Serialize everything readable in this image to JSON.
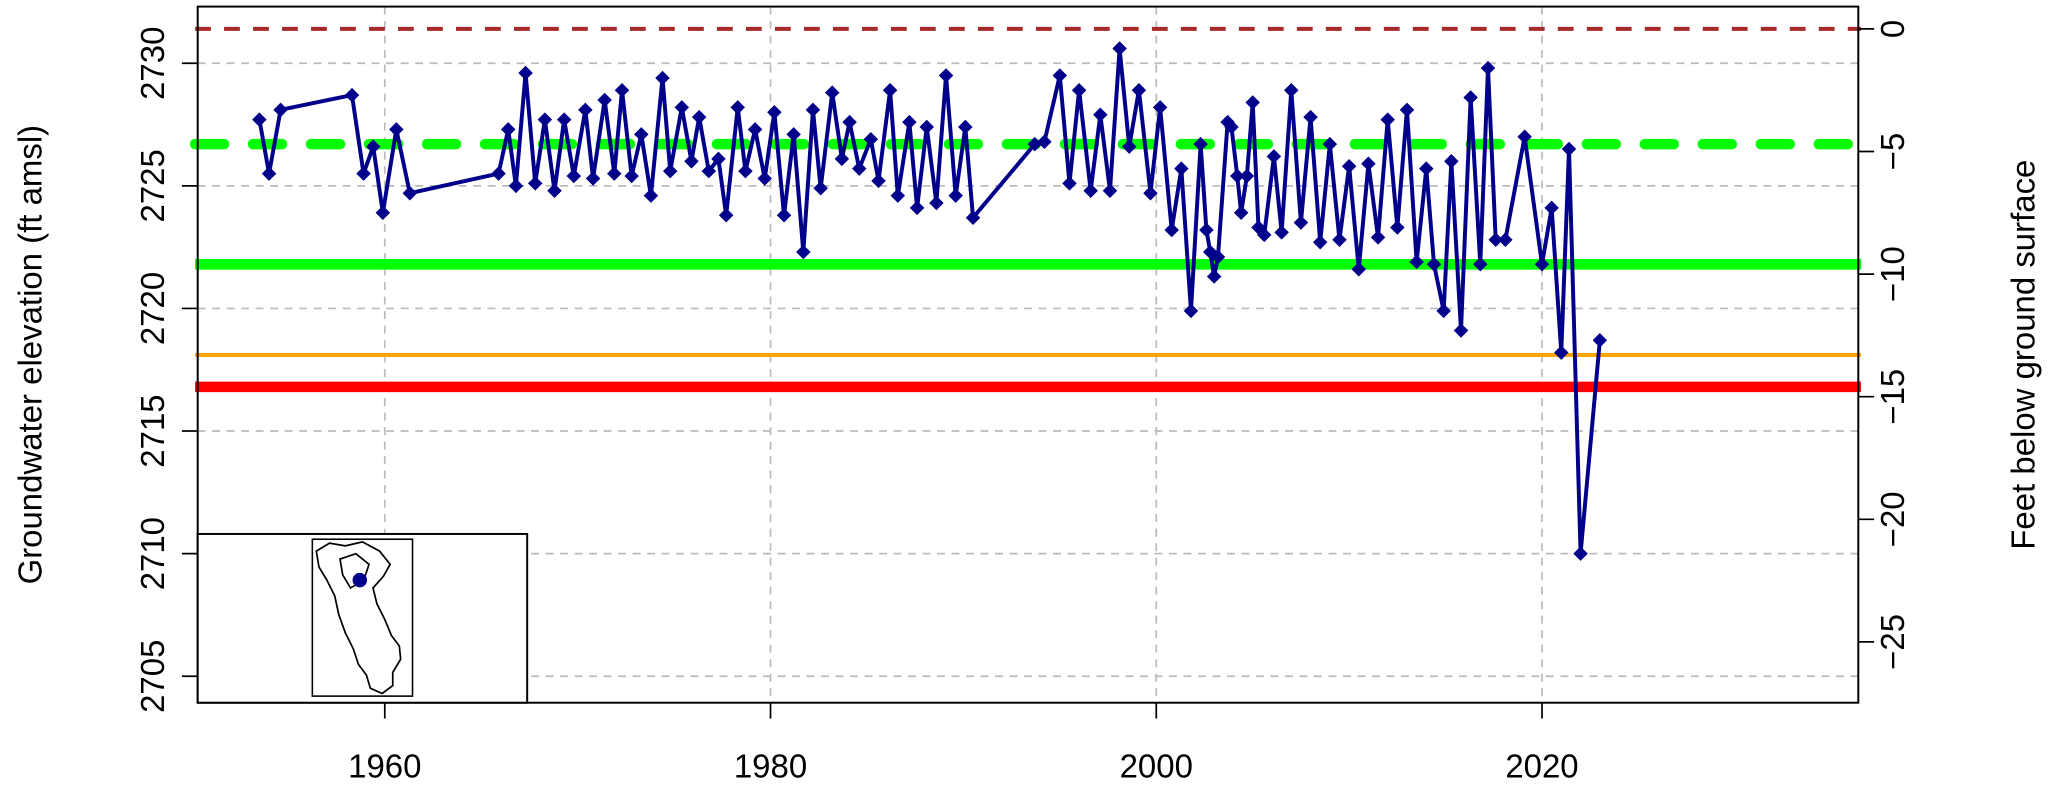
{
  "chart_data": {
    "type": "line",
    "y_label": "Groundwater elevation (ft amsl)",
    "y2_label": "Feet below ground surface",
    "xlim": [
      1950.3,
      2036.4
    ],
    "ylim": [
      2703.92,
      2732.31
    ],
    "y2lim": [
      -27.48,
      0.91
    ],
    "xticks": [
      1960,
      1980,
      2000,
      2020
    ],
    "yticks": [
      2705,
      2710,
      2715,
      2720,
      2725,
      2730
    ],
    "y2ticks": [
      {
        "value": 0,
        "label": "0"
      },
      {
        "value": -5,
        "label": "−5"
      },
      {
        "value": -10,
        "label": "−10"
      },
      {
        "value": -15,
        "label": "−15"
      },
      {
        "value": -20,
        "label": "−20"
      },
      {
        "value": -25,
        "label": "−25"
      }
    ],
    "grid": true,
    "hlines": [
      {
        "value": 0,
        "axis": "y2",
        "color": "#a52a2a",
        "style": "dashed",
        "width": 3
      },
      {
        "value": 2726.7,
        "axis": "y",
        "color": "#00ff00",
        "style": "longdash",
        "width": 8
      },
      {
        "value": 2721.8,
        "axis": "y",
        "color": "#00ff00",
        "style": "solid",
        "width": 8
      },
      {
        "value": 2718.1,
        "axis": "y",
        "color": "#ffa500",
        "style": "solid",
        "width": 3
      },
      {
        "value": 2716.8,
        "axis": "y",
        "color": "#ff0000",
        "style": "solid",
        "width": 8
      }
    ],
    "series": [
      {
        "color": "#00008b",
        "x": [
          1953.5,
          1954.0,
          1954.6,
          1958.3,
          1958.9,
          1959.4,
          1959.9,
          1960.6,
          1961.3,
          1965.9,
          1966.4,
          1966.8,
          1967.3,
          1967.8,
          1968.3,
          1968.8,
          1969.3,
          1969.8,
          1970.4,
          1970.8,
          1971.4,
          1971.9,
          1972.3,
          1972.8,
          1973.3,
          1973.8,
          1974.4,
          1974.8,
          1975.4,
          1975.9,
          1976.3,
          1976.8,
          1977.3,
          1977.7,
          1978.3,
          1978.7,
          1979.2,
          1979.7,
          1980.2,
          1980.7,
          1981.2,
          1981.7,
          1982.2,
          1982.6,
          1983.2,
          1983.7,
          1984.1,
          1984.6,
          1985.2,
          1985.6,
          1986.2,
          1986.6,
          1987.2,
          1987.6,
          1988.1,
          1988.6,
          1989.1,
          1989.6,
          1990.1,
          1990.5,
          1993.7,
          1994.2,
          1995.0,
          1995.5,
          1996.0,
          1996.6,
          1997.1,
          1997.6,
          1998.1,
          1998.6,
          1999.1,
          1999.7,
          2000.2,
          2000.8,
          2001.3,
          2001.8,
          2002.3,
          2002.6,
          2002.8,
          2003.0,
          2003.2,
          2003.7,
          2003.9,
          2004.2,
          2004.4,
          2004.7,
          2005.0,
          2005.3,
          2005.6,
          2006.1,
          2006.5,
          2007.0,
          2007.5,
          2008.0,
          2008.5,
          2009.0,
          2009.5,
          2010.0,
          2010.5,
          2011.0,
          2011.5,
          2012.0,
          2012.5,
          2013.0,
          2013.5,
          2014.0,
          2014.4,
          2014.9,
          2015.3,
          2015.8,
          2016.3,
          2016.8,
          2017.2,
          2017.6,
          2018.1,
          2019.1,
          2020.0,
          2020.5,
          2021.0,
          2021.4,
          2022.0,
          2023.0
        ],
        "values": [
          2727.7,
          2725.5,
          2728.1,
          2728.7,
          2725.5,
          2726.6,
          2723.9,
          2727.3,
          2724.7,
          2725.5,
          2727.3,
          2725.0,
          2729.6,
          2725.1,
          2727.7,
          2724.8,
          2727.7,
          2725.4,
          2728.1,
          2725.3,
          2728.5,
          2725.5,
          2728.9,
          2725.4,
          2727.1,
          2724.6,
          2729.4,
          2725.6,
          2728.2,
          2726.0,
          2727.8,
          2725.6,
          2726.1,
          2723.8,
          2728.2,
          2725.6,
          2727.3,
          2725.3,
          2728.0,
          2723.8,
          2727.1,
          2722.3,
          2728.1,
          2724.9,
          2728.8,
          2726.1,
          2727.6,
          2725.7,
          2726.9,
          2725.2,
          2728.9,
          2724.6,
          2727.6,
          2724.1,
          2727.4,
          2724.3,
          2729.5,
          2724.6,
          2727.4,
          2723.7,
          2726.7,
          2726.8,
          2729.5,
          2725.1,
          2728.9,
          2724.8,
          2727.9,
          2724.8,
          2730.6,
          2726.6,
          2728.9,
          2724.7,
          2728.2,
          2723.2,
          2725.7,
          2719.9,
          2726.7,
          2723.2,
          2722.3,
          2721.3,
          2722.1,
          2727.6,
          2727.4,
          2725.4,
          2723.9,
          2725.4,
          2728.4,
          2723.3,
          2723.0,
          2726.2,
          2723.1,
          2728.9,
          2723.5,
          2727.8,
          2722.7,
          2726.7,
          2722.8,
          2725.8,
          2721.6,
          2725.9,
          2722.9,
          2727.7,
          2723.3,
          2728.1,
          2721.9,
          2725.7,
          2721.8,
          2719.9,
          2726.0,
          2719.1,
          2728.6,
          2721.8,
          2729.8,
          2722.8,
          2722.8,
          2727.0,
          2721.8,
          2724.1,
          2718.2,
          2726.5,
          2710.0,
          2718.7
        ]
      }
    ]
  }
}
